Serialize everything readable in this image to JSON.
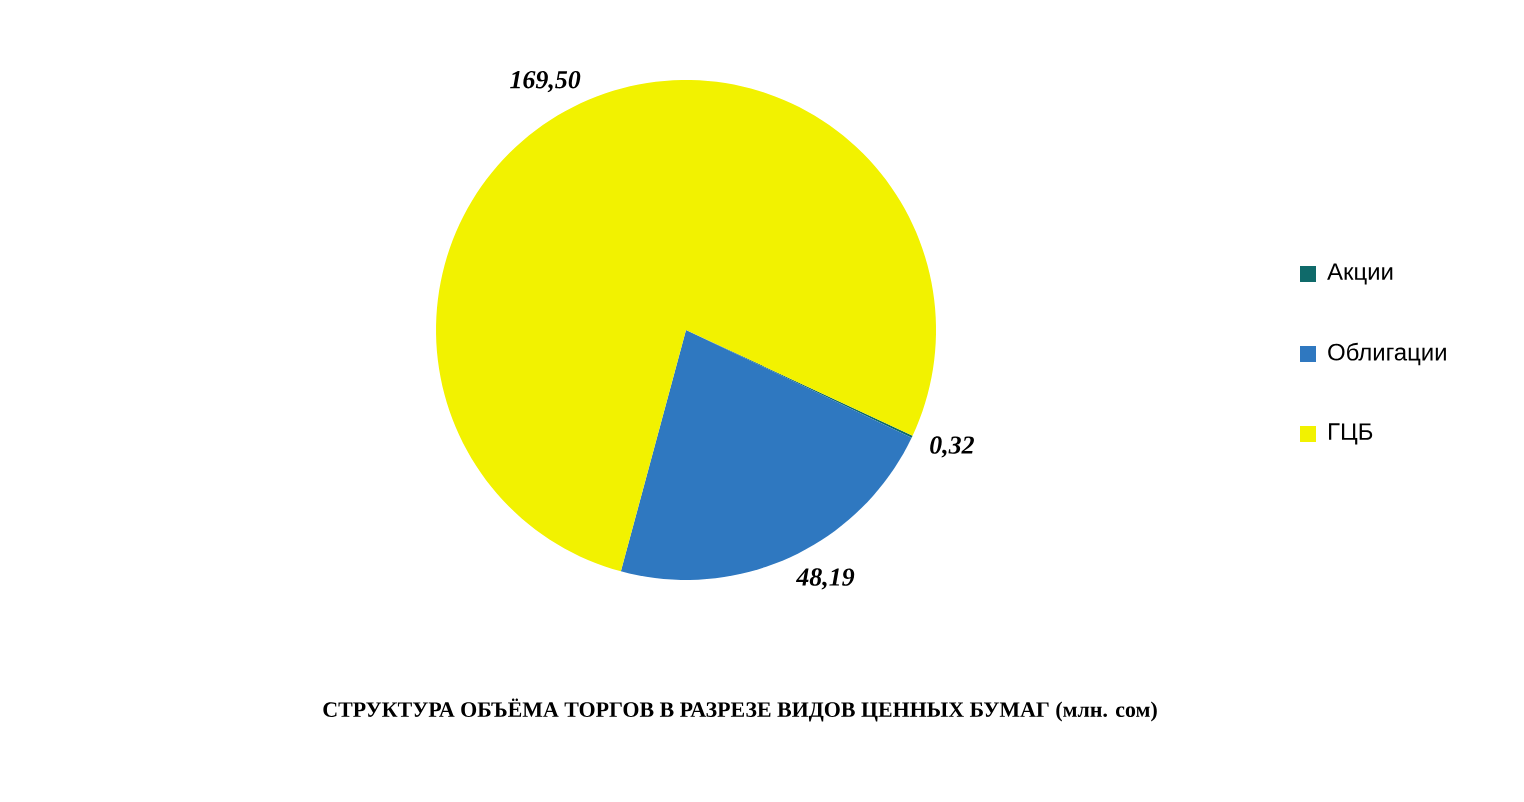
{
  "chart_data": {
    "type": "pie",
    "title": "СТРУКТУРА ОБЪЁМА ТОРГОВ В РАЗРЕЗЕ ВИДОВ ЦЕННЫХ БУМАГ  (млн. сом)",
    "categories": [
      "Акции",
      "Облигации",
      "ГЦБ"
    ],
    "values": [
      0.32,
      48.19,
      169.5
    ],
    "value_labels": [
      "0,32",
      "48,19",
      "169,50"
    ],
    "colors": [
      "#0f6a6a",
      "#2f78c0",
      "#f2f200"
    ],
    "legend": "right"
  }
}
